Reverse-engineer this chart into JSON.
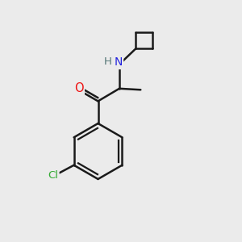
{
  "background_color": "#ebebeb",
  "bond_color": "#1a1a1a",
  "atom_colors": {
    "O": "#ee1111",
    "N": "#2222dd",
    "Cl": "#33aa33",
    "H": "#557777",
    "C": "#1a1a1a"
  },
  "bond_width": 1.8,
  "figsize": [
    3.0,
    3.0
  ],
  "dpi": 100
}
